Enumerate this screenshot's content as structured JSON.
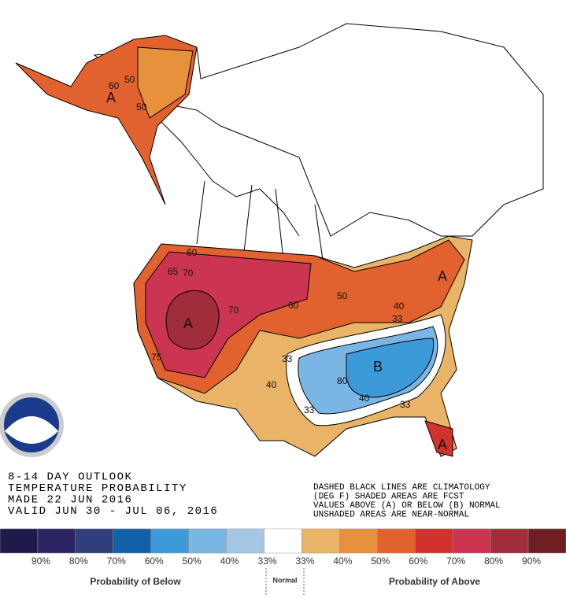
{
  "header": {
    "lines": [
      "8-14 DAY OUTLOOK",
      "TEMPERATURE PROBABILITY",
      "MADE  22 JUN 2016",
      "VALID  JUN 30 - JUL 06, 2016"
    ]
  },
  "notes": [
    "DASHED BLACK LINES ARE CLIMATOLOGY",
    "(DEG F) SHADED AREAS ARE FCST",
    "VALUES ABOVE (A) OR BELOW (B) NORMAL",
    "UNSHADED AREAS ARE NEAR-NORMAL"
  ],
  "map_labels": [
    "A",
    "A",
    "A",
    "B",
    "A",
    "50",
    "60",
    "70",
    "70",
    "60",
    "50",
    "40",
    "33",
    "33",
    "40",
    "33",
    "80",
    "40",
    "33",
    "75",
    "65",
    "60",
    "50"
  ],
  "legend": {
    "colors": [
      "#1f1a4c",
      "#2b2564",
      "#2f3f7b",
      "#1361a9",
      "#3d9ad9",
      "#7ab5e4",
      "#a6c6e6",
      "#ffffff",
      "#e9b467",
      "#e8913d",
      "#e1622f",
      "#d0322d",
      "#cc3551",
      "#a12d39",
      "#6f1f23"
    ],
    "labels": [
      "90%",
      "80%",
      "70%",
      "60%",
      "50%",
      "40%",
      "33%",
      "33%",
      "40%",
      "50%",
      "60%",
      "70%",
      "80%",
      "90%"
    ],
    "below": "Probability of Below",
    "normal": "Normal",
    "above": "Probability of Above"
  }
}
